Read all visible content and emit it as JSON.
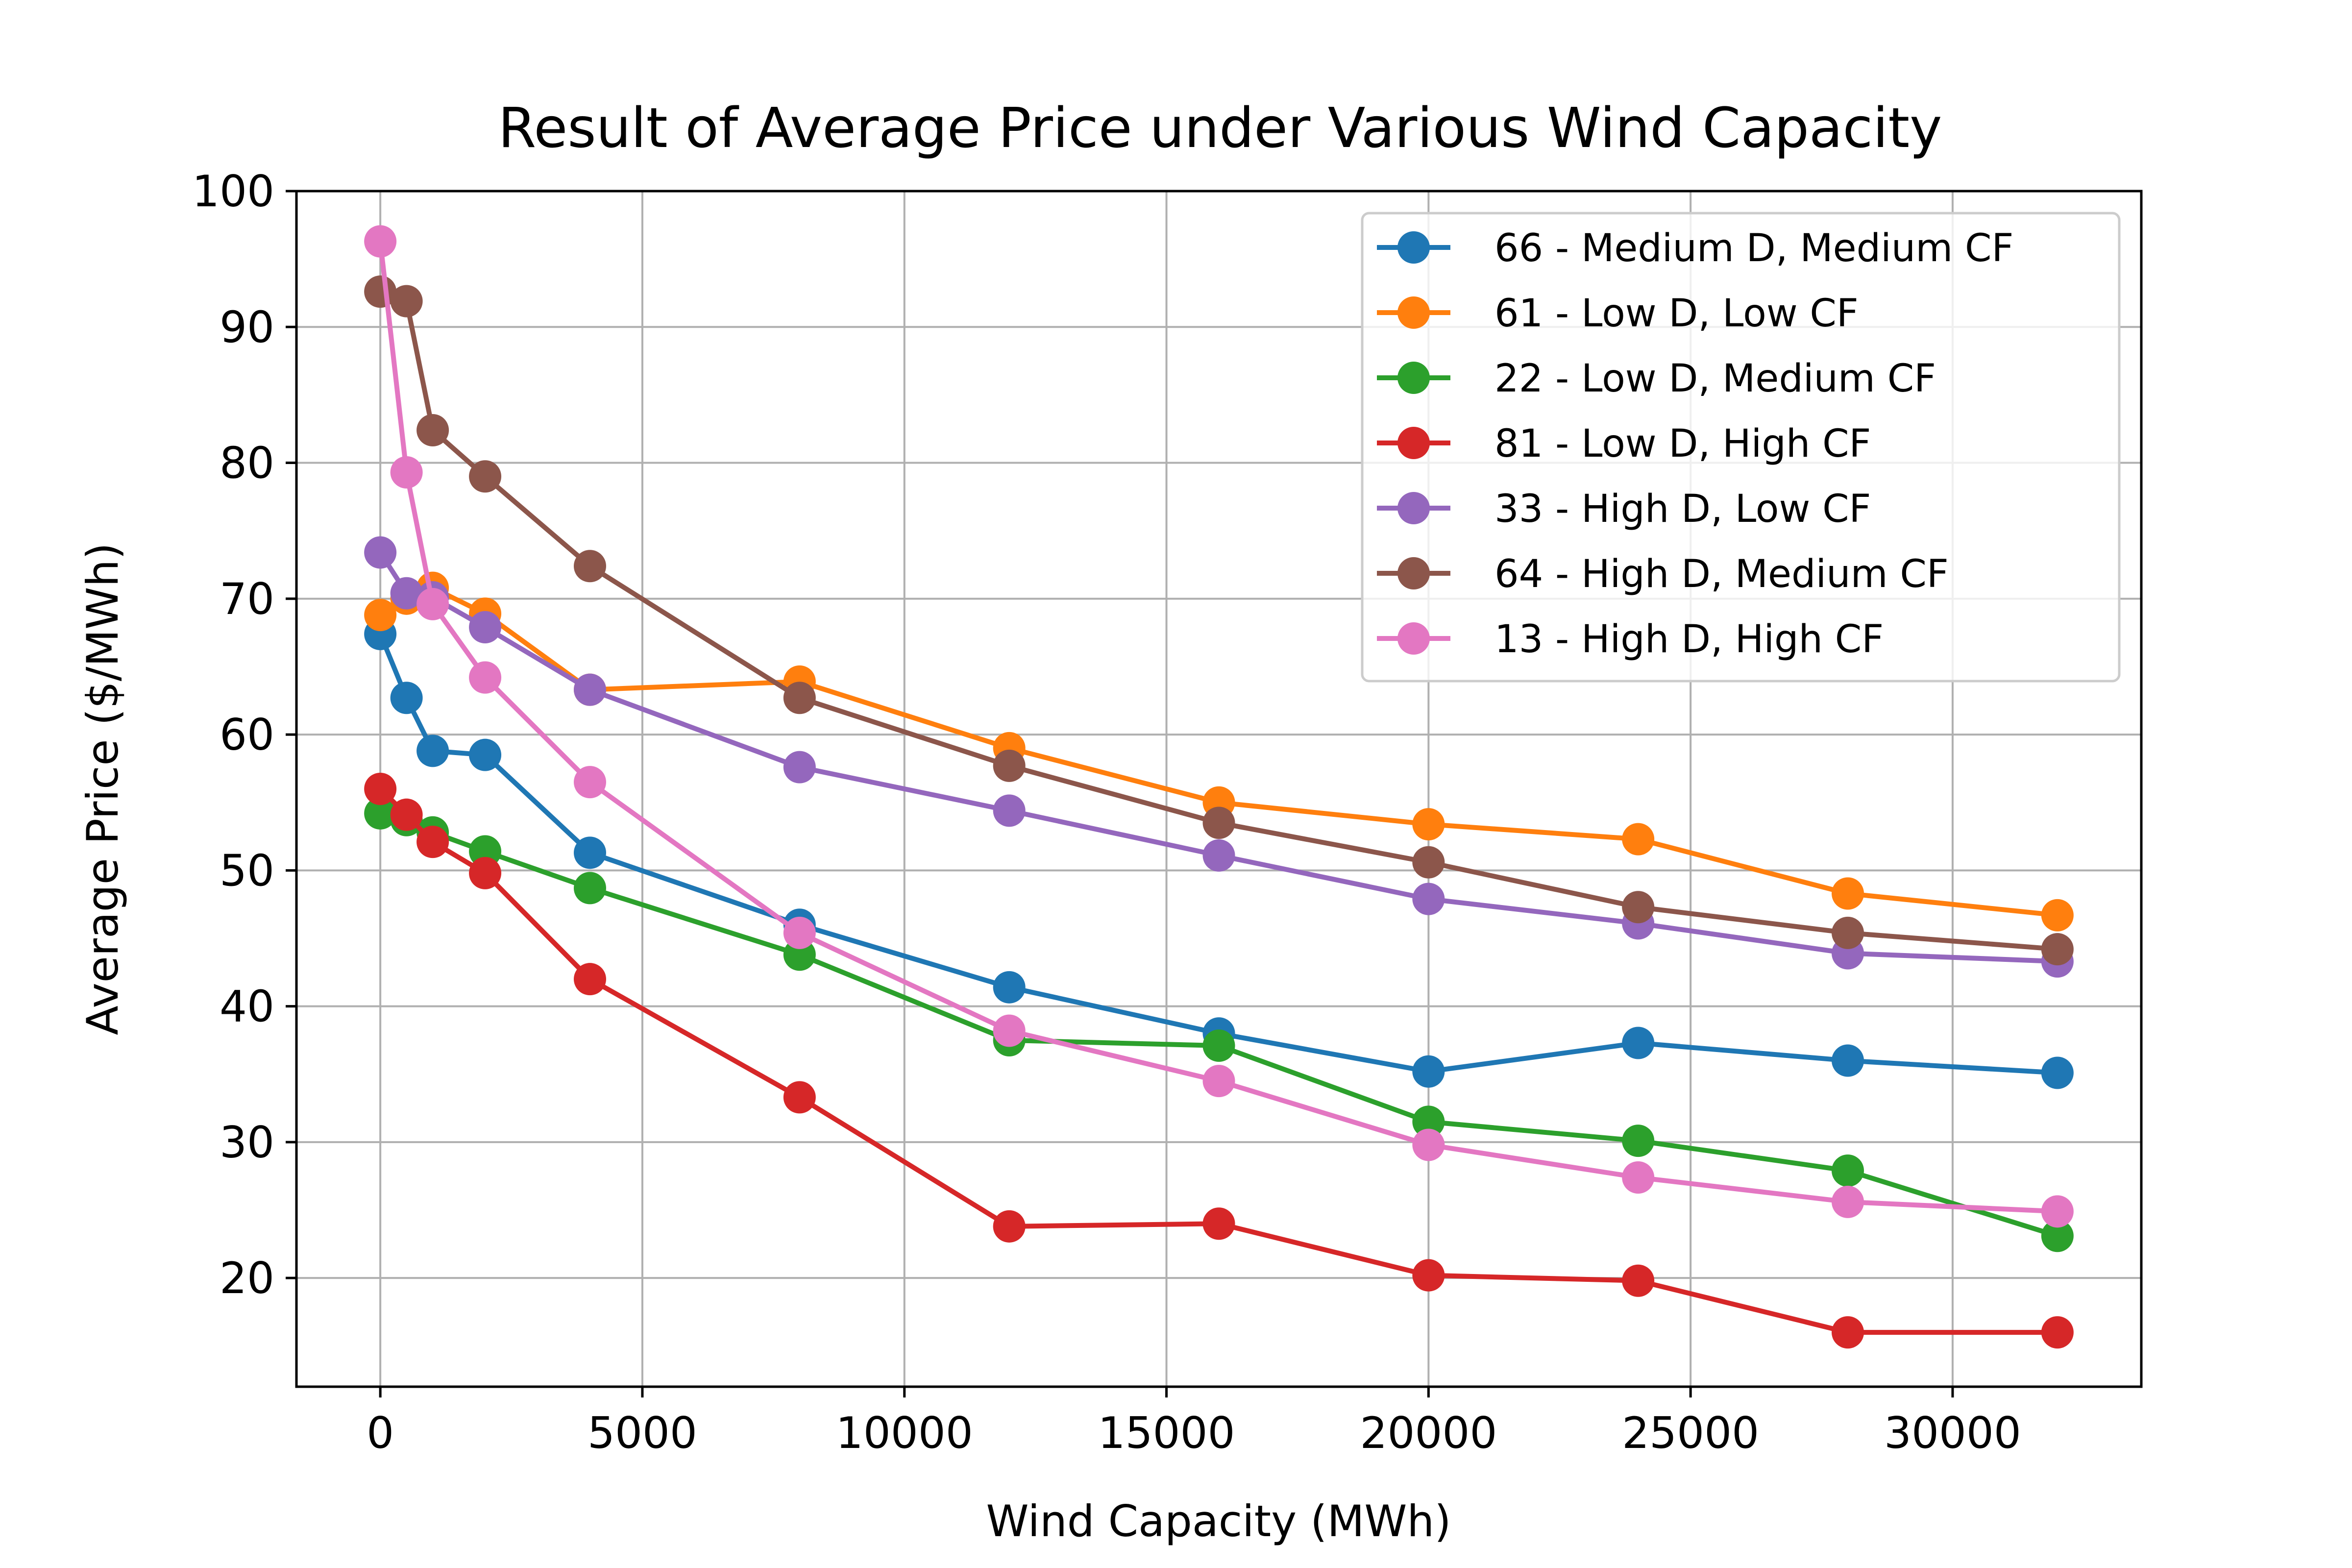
{
  "chart_data": {
    "type": "line",
    "title": "Result of Average Price under Various Wind Capacity",
    "xlabel": "Wind Capacity (MWh)",
    "ylabel": "Average Price ($/MWh)",
    "xlim": [
      -1600,
      33600
    ],
    "ylim": [
      12,
      100
    ],
    "x_ticks": [
      0,
      5000,
      10000,
      15000,
      20000,
      25000,
      30000
    ],
    "y_ticks": [
      20,
      30,
      40,
      50,
      60,
      70,
      80,
      90,
      100
    ],
    "grid": true,
    "legend_position": "top-right",
    "x": [
      0,
      500,
      1000,
      2000,
      4000,
      8000,
      12000,
      16000,
      20000,
      24000,
      28000,
      32000
    ],
    "series": [
      {
        "name": "66 - Medium D, Medium CF",
        "color": "#1f77b4",
        "values": [
          67.4,
          62.7,
          58.8,
          58.5,
          51.3,
          46.0,
          41.4,
          38.0,
          35.2,
          37.3,
          36.0,
          35.1
        ]
      },
      {
        "name": "61 - Low D, Low CF",
        "color": "#ff7f0e",
        "values": [
          68.8,
          70.0,
          70.8,
          68.9,
          63.3,
          63.9,
          59.0,
          55.0,
          53.4,
          52.3,
          48.3,
          46.7
        ]
      },
      {
        "name": "22 - Low D, Medium CF",
        "color": "#2ca02c",
        "values": [
          54.2,
          53.7,
          52.8,
          51.4,
          48.7,
          43.8,
          37.5,
          37.1,
          31.5,
          30.1,
          27.9,
          23.1
        ]
      },
      {
        "name": "81 - Low D, High CF",
        "color": "#d62728",
        "values": [
          56.0,
          54.1,
          52.1,
          49.8,
          42.0,
          33.3,
          23.8,
          24.0,
          20.2,
          19.8,
          16.0,
          16.0
        ]
      },
      {
        "name": "33 - High D, Low CF",
        "color": "#9467bd",
        "values": [
          73.4,
          70.4,
          70.1,
          67.9,
          63.3,
          57.6,
          54.4,
          51.1,
          47.9,
          46.1,
          43.9,
          43.3
        ]
      },
      {
        "name": "64 - High D, Medium CF",
        "color": "#8c564b",
        "values": [
          92.6,
          91.9,
          82.4,
          79.0,
          72.4,
          62.7,
          57.7,
          53.5,
          50.6,
          47.3,
          45.4,
          44.2
        ]
      },
      {
        "name": "13 - High D, High CF",
        "color": "#e377c2",
        "values": [
          96.3,
          79.3,
          69.6,
          64.2,
          56.5,
          45.4,
          38.2,
          34.5,
          29.8,
          27.4,
          25.6,
          24.9
        ]
      }
    ]
  }
}
